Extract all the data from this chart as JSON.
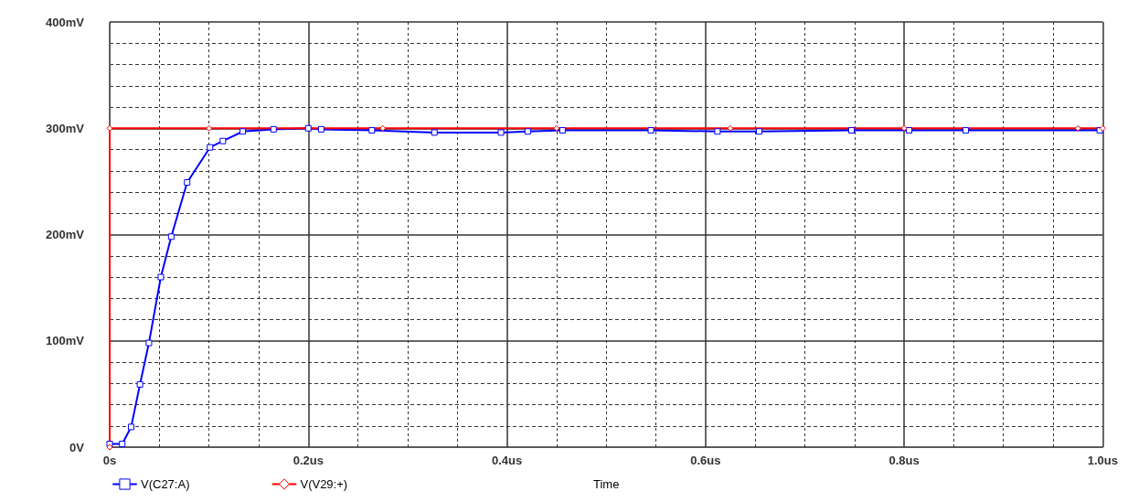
{
  "chart_data": {
    "type": "line",
    "xlabel": "Time",
    "x": [
      0,
      0.0126,
      0.0216,
      0.0305,
      0.0395,
      0.0515,
      0.062,
      0.078,
      0.101,
      0.114,
      0.134,
      0.165,
      0.2,
      0.213,
      0.264,
      0.327,
      0.394,
      0.421,
      0.456,
      0.545,
      0.612,
      0.654,
      0.747,
      0.805,
      0.862,
      0.997
    ],
    "series": [
      {
        "name": "V(C27:A)",
        "color": "#0000ff",
        "marker": "square",
        "values": [
          3,
          3,
          19,
          59,
          98,
          160,
          198,
          249,
          282,
          288,
          297,
          299,
          300,
          299,
          298,
          296,
          296,
          297,
          298,
          298,
          297,
          297,
          298,
          298,
          298,
          298
        ]
      },
      {
        "name": "V(V29:+)",
        "color": "#ff0000",
        "marker": "diamond",
        "x": [
          0,
          0,
          0.1,
          0.275,
          0.45,
          0.625,
          0.8,
          0.975,
          1.0
        ],
        "values": [
          0,
          300,
          300,
          300,
          300,
          300,
          300,
          300,
          300
        ]
      }
    ],
    "xlim": [
      0,
      1.0
    ],
    "xticks": [
      {
        "value": 0,
        "label": "0s"
      },
      {
        "value": 0.2,
        "label": "0.2us"
      },
      {
        "value": 0.4,
        "label": "0.4us"
      },
      {
        "value": 0.6,
        "label": "0.6us"
      },
      {
        "value": 0.8,
        "label": "0.8us"
      },
      {
        "value": 1.0,
        "label": "1.0us"
      }
    ],
    "ylim": [
      0,
      400
    ],
    "yticks": [
      {
        "value": 0,
        "label": "0V"
      },
      {
        "value": 100,
        "label": "100mV"
      },
      {
        "value": 200,
        "label": "200mV"
      },
      {
        "value": 300,
        "label": "300mV"
      },
      {
        "value": 400,
        "label": "400mV"
      }
    ],
    "grid": true,
    "legend": "bottom left",
    "line_style": "solid"
  }
}
